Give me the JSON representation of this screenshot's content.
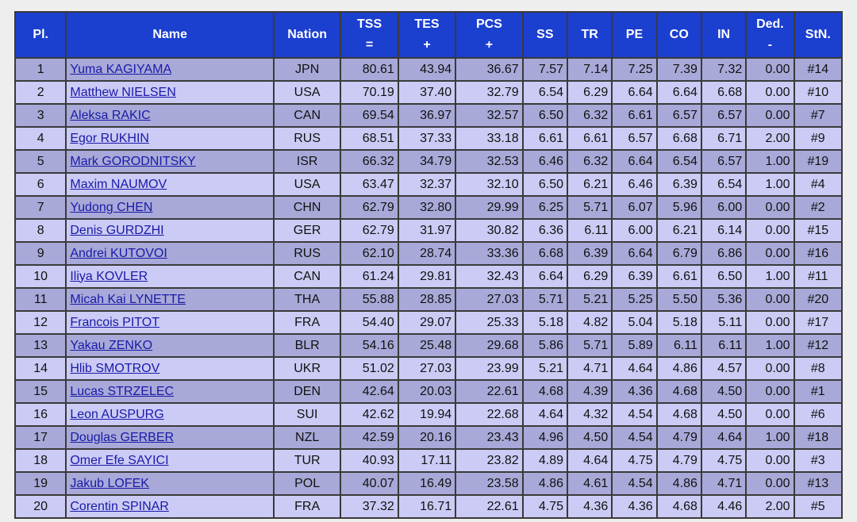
{
  "headers": [
    {
      "key": "pl",
      "line1": "Pl.",
      "line2": ""
    },
    {
      "key": "name",
      "line1": "Name",
      "line2": ""
    },
    {
      "key": "nation",
      "line1": "Nation",
      "line2": ""
    },
    {
      "key": "tss",
      "line1": "TSS",
      "line2": "="
    },
    {
      "key": "tes",
      "line1": "TES",
      "line2": "+"
    },
    {
      "key": "pcs",
      "line1": "PCS",
      "line2": "+"
    },
    {
      "key": "ss",
      "line1": "SS",
      "line2": ""
    },
    {
      "key": "tr",
      "line1": "TR",
      "line2": ""
    },
    {
      "key": "pe",
      "line1": "PE",
      "line2": ""
    },
    {
      "key": "co",
      "line1": "CO",
      "line2": ""
    },
    {
      "key": "in",
      "line1": "IN",
      "line2": ""
    },
    {
      "key": "ded",
      "line1": "Ded.",
      "line2": "-"
    },
    {
      "key": "stn",
      "line1": "StN.",
      "line2": ""
    }
  ],
  "rows": [
    [
      "1",
      "Yuma KAGIYAMA",
      "JPN",
      "80.61",
      "43.94",
      "36.67",
      "7.57",
      "7.14",
      "7.25",
      "7.39",
      "7.32",
      "0.00",
      "#14"
    ],
    [
      "2",
      "Matthew NIELSEN",
      "USA",
      "70.19",
      "37.40",
      "32.79",
      "6.54",
      "6.29",
      "6.64",
      "6.64",
      "6.68",
      "0.00",
      "#10"
    ],
    [
      "3",
      "Aleksa RAKIC",
      "CAN",
      "69.54",
      "36.97",
      "32.57",
      "6.50",
      "6.32",
      "6.61",
      "6.57",
      "6.57",
      "0.00",
      "#7"
    ],
    [
      "4",
      "Egor RUKHIN",
      "RUS",
      "68.51",
      "37.33",
      "33.18",
      "6.61",
      "6.61",
      "6.57",
      "6.68",
      "6.71",
      "2.00",
      "#9"
    ],
    [
      "5",
      "Mark GORODNITSKY",
      "ISR",
      "66.32",
      "34.79",
      "32.53",
      "6.46",
      "6.32",
      "6.64",
      "6.54",
      "6.57",
      "1.00",
      "#19"
    ],
    [
      "6",
      "Maxim NAUMOV",
      "USA",
      "63.47",
      "32.37",
      "32.10",
      "6.50",
      "6.21",
      "6.46",
      "6.39",
      "6.54",
      "1.00",
      "#4"
    ],
    [
      "7",
      "Yudong CHEN",
      "CHN",
      "62.79",
      "32.80",
      "29.99",
      "6.25",
      "5.71",
      "6.07",
      "5.96",
      "6.00",
      "0.00",
      "#2"
    ],
    [
      "8",
      "Denis GURDZHI",
      "GER",
      "62.79",
      "31.97",
      "30.82",
      "6.36",
      "6.11",
      "6.00",
      "6.21",
      "6.14",
      "0.00",
      "#15"
    ],
    [
      "9",
      "Andrei KUTOVOI",
      "RUS",
      "62.10",
      "28.74",
      "33.36",
      "6.68",
      "6.39",
      "6.64",
      "6.79",
      "6.86",
      "0.00",
      "#16"
    ],
    [
      "10",
      "Iliya KOVLER",
      "CAN",
      "61.24",
      "29.81",
      "32.43",
      "6.64",
      "6.29",
      "6.39",
      "6.61",
      "6.50",
      "1.00",
      "#11"
    ],
    [
      "11",
      "Micah Kai LYNETTE",
      "THA",
      "55.88",
      "28.85",
      "27.03",
      "5.71",
      "5.21",
      "5.25",
      "5.50",
      "5.36",
      "0.00",
      "#20"
    ],
    [
      "12",
      "Francois PITOT",
      "FRA",
      "54.40",
      "29.07",
      "25.33",
      "5.18",
      "4.82",
      "5.04",
      "5.18",
      "5.11",
      "0.00",
      "#17"
    ],
    [
      "13",
      "Yakau ZENKO",
      "BLR",
      "54.16",
      "25.48",
      "29.68",
      "5.86",
      "5.71",
      "5.89",
      "6.11",
      "6.11",
      "1.00",
      "#12"
    ],
    [
      "14",
      "Hlib SMOTROV",
      "UKR",
      "51.02",
      "27.03",
      "23.99",
      "5.21",
      "4.71",
      "4.64",
      "4.86",
      "4.57",
      "0.00",
      "#8"
    ],
    [
      "15",
      "Lucas STRZELEC",
      "DEN",
      "42.64",
      "20.03",
      "22.61",
      "4.68",
      "4.39",
      "4.36",
      "4.68",
      "4.50",
      "0.00",
      "#1"
    ],
    [
      "16",
      "Leon AUSPURG",
      "SUI",
      "42.62",
      "19.94",
      "22.68",
      "4.64",
      "4.32",
      "4.54",
      "4.68",
      "4.50",
      "0.00",
      "#6"
    ],
    [
      "17",
      "Douglas GERBER",
      "NZL",
      "42.59",
      "20.16",
      "23.43",
      "4.96",
      "4.50",
      "4.54",
      "4.79",
      "4.64",
      "1.00",
      "#18"
    ],
    [
      "18",
      "Omer Efe SAYICI",
      "TUR",
      "40.93",
      "17.11",
      "23.82",
      "4.89",
      "4.64",
      "4.75",
      "4.79",
      "4.75",
      "0.00",
      "#3"
    ],
    [
      "19",
      "Jakub LOFEK",
      "POL",
      "40.07",
      "16.49",
      "23.58",
      "4.86",
      "4.61",
      "4.54",
      "4.86",
      "4.71",
      "0.00",
      "#13"
    ],
    [
      "20",
      "Corentin SPINAR",
      "FRA",
      "37.32",
      "16.71",
      "22.61",
      "4.75",
      "4.36",
      "4.36",
      "4.68",
      "4.46",
      "2.00",
      "#5"
    ]
  ],
  "colors": {
    "header_bg": "#1b3fcf",
    "row_odd": "#a8a9d8",
    "row_even": "#cbcbf5",
    "link": "#1a1aa8"
  }
}
